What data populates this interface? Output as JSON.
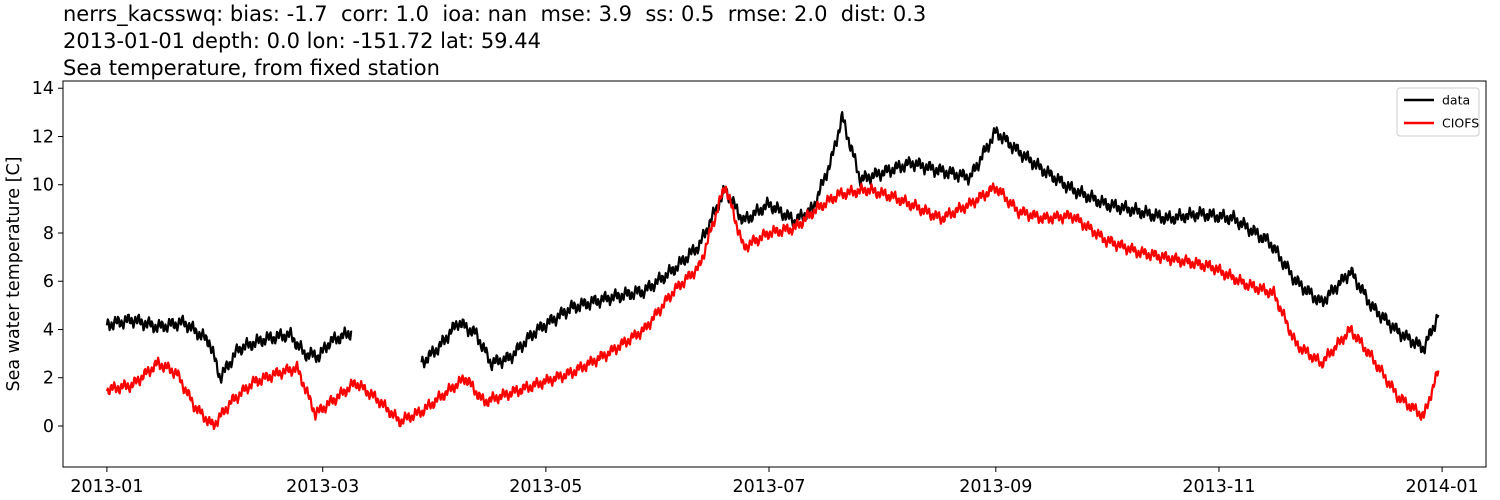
{
  "chart_data": {
    "type": "line",
    "title_lines": [
      "nerrs_kacsswq: bias: -1.7  corr: 1.0  ioa: nan  mse: 3.9  ss: 0.5  rmse: 2.0  dist: 0.3",
      "2013-01-01 depth: 0.0 lon: -151.72 lat: 59.44",
      "Sea temperature, from fixed station"
    ],
    "xlabel": "",
    "ylabel": "Sea water temperature [C]",
    "xlim": [
      "2012-12-20",
      "2014-01-13"
    ],
    "ylim": [
      -1.7,
      14.3
    ],
    "x_ticks": [
      "2013-01",
      "2013-03",
      "2013-05",
      "2013-07",
      "2013-09",
      "2013-11",
      "2014-01"
    ],
    "y_ticks": [
      0,
      2,
      4,
      6,
      8,
      10,
      12,
      14
    ],
    "grid": false,
    "legend_position": "top-right",
    "series": [
      {
        "name": "data",
        "color": "#000000",
        "points": [
          [
            "2013-01-01",
            4.2
          ],
          [
            "2013-01-08",
            4.4
          ],
          [
            "2013-01-15",
            4.1
          ],
          [
            "2013-01-22",
            4.3
          ],
          [
            "2013-01-29",
            3.5
          ],
          [
            "2013-02-01",
            2.0
          ],
          [
            "2013-02-06",
            3.2
          ],
          [
            "2013-02-13",
            3.6
          ],
          [
            "2013-02-20",
            3.8
          ],
          [
            "2013-02-24",
            3.0
          ],
          [
            "2013-02-28",
            2.9
          ],
          [
            "2013-03-03",
            3.5
          ],
          [
            "2013-03-09",
            3.9
          ],
          [
            null,
            null
          ],
          [
            "2013-03-28",
            2.6
          ],
          [
            "2013-04-02",
            3.3
          ],
          [
            "2013-04-07",
            4.3
          ],
          [
            "2013-04-12",
            3.8
          ],
          [
            "2013-04-16",
            2.6
          ],
          [
            "2013-04-21",
            2.8
          ],
          [
            "2013-04-28",
            3.9
          ],
          [
            "2013-05-08",
            4.9
          ],
          [
            "2013-05-18",
            5.3
          ],
          [
            "2013-05-28",
            5.6
          ],
          [
            "2013-06-05",
            6.5
          ],
          [
            "2013-06-12",
            7.5
          ],
          [
            "2013-06-19",
            9.8
          ],
          [
            "2013-06-24",
            8.5
          ],
          [
            "2013-07-01",
            9.2
          ],
          [
            "2013-07-08",
            8.5
          ],
          [
            "2013-07-13",
            9.0
          ],
          [
            "2013-07-18",
            11.0
          ],
          [
            "2013-07-21",
            12.8
          ],
          [
            "2013-07-26",
            10.2
          ],
          [
            "2013-08-01",
            10.5
          ],
          [
            "2013-08-09",
            10.9
          ],
          [
            "2013-08-16",
            10.6
          ],
          [
            "2013-08-25",
            10.3
          ],
          [
            "2013-09-01",
            12.2
          ],
          [
            "2013-09-07",
            11.4
          ],
          [
            "2013-09-14",
            10.6
          ],
          [
            "2013-09-22",
            9.8
          ],
          [
            "2013-10-01",
            9.2
          ],
          [
            "2013-10-10",
            8.9
          ],
          [
            "2013-10-18",
            8.6
          ],
          [
            "2013-10-27",
            8.8
          ],
          [
            "2013-11-05",
            8.6
          ],
          [
            "2013-11-15",
            7.6
          ],
          [
            "2013-11-22",
            6.0
          ],
          [
            "2013-11-29",
            5.1
          ],
          [
            "2013-12-07",
            6.4
          ],
          [
            "2013-12-13",
            4.9
          ],
          [
            "2013-12-20",
            3.9
          ],
          [
            "2013-12-27",
            3.2
          ],
          [
            "2013-12-31",
            4.6
          ]
        ]
      },
      {
        "name": "CIOFS",
        "color": "#ff0000",
        "points": [
          [
            "2013-01-01",
            1.5
          ],
          [
            "2013-01-08",
            1.7
          ],
          [
            "2013-01-15",
            2.6
          ],
          [
            "2013-01-20",
            2.2
          ],
          [
            "2013-01-25",
            0.8
          ],
          [
            "2013-01-30",
            0.0
          ],
          [
            "2013-02-04",
            1.0
          ],
          [
            "2013-02-10",
            1.8
          ],
          [
            "2013-02-17",
            2.2
          ],
          [
            "2013-02-22",
            2.4
          ],
          [
            "2013-02-27",
            0.5
          ],
          [
            "2013-03-05",
            1.2
          ],
          [
            "2013-03-10",
            1.8
          ],
          [
            "2013-03-16",
            1.1
          ],
          [
            "2013-03-22",
            0.2
          ],
          [
            "2013-03-28",
            0.6
          ],
          [
            "2013-04-03",
            1.3
          ],
          [
            "2013-04-09",
            2.0
          ],
          [
            "2013-04-14",
            1.0
          ],
          [
            "2013-04-20",
            1.3
          ],
          [
            "2013-04-28",
            1.7
          ],
          [
            "2013-05-08",
            2.2
          ],
          [
            "2013-05-18",
            3.0
          ],
          [
            "2013-05-28",
            4.0
          ],
          [
            "2013-06-05",
            5.6
          ],
          [
            "2013-06-12",
            6.6
          ],
          [
            "2013-06-19",
            10.0
          ],
          [
            "2013-06-24",
            7.4
          ],
          [
            "2013-07-01",
            8.0
          ],
          [
            "2013-07-08",
            8.2
          ],
          [
            "2013-07-14",
            9.0
          ],
          [
            "2013-07-20",
            9.6
          ],
          [
            "2013-07-28",
            9.8
          ],
          [
            "2013-08-04",
            9.5
          ],
          [
            "2013-08-10",
            9.1
          ],
          [
            "2013-08-17",
            8.6
          ],
          [
            "2013-08-25",
            9.2
          ],
          [
            "2013-09-01",
            9.9
          ],
          [
            "2013-09-07",
            8.9
          ],
          [
            "2013-09-14",
            8.6
          ],
          [
            "2013-09-22",
            8.7
          ],
          [
            "2013-10-01",
            7.7
          ],
          [
            "2013-10-10",
            7.2
          ],
          [
            "2013-10-20",
            6.9
          ],
          [
            "2013-10-30",
            6.6
          ],
          [
            "2013-11-08",
            5.9
          ],
          [
            "2013-11-16",
            5.5
          ],
          [
            "2013-11-22",
            3.4
          ],
          [
            "2013-11-29",
            2.6
          ],
          [
            "2013-12-07",
            4.0
          ],
          [
            "2013-12-13",
            2.8
          ],
          [
            "2013-12-20",
            1.2
          ],
          [
            "2013-12-27",
            0.4
          ],
          [
            "2013-12-31",
            2.3
          ]
        ]
      }
    ]
  }
}
